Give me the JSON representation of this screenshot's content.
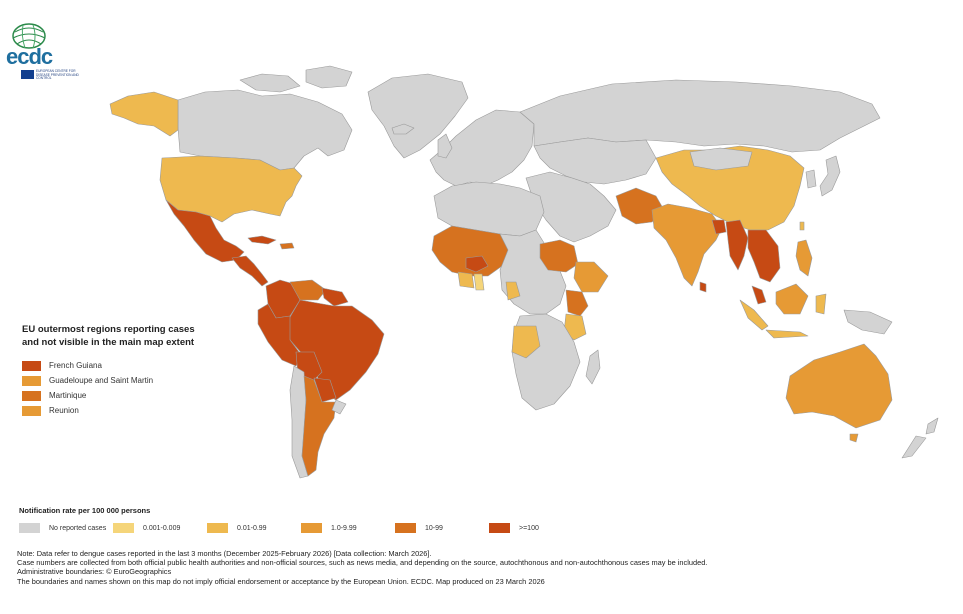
{
  "logo": {
    "wordmark": "ecdc",
    "subtitle": "EUROPEAN CENTRE FOR DISEASE PREVENTION AND CONTROL",
    "globe_icon": "ecdc-globe-icon",
    "flag_icon": "eu-flag-icon"
  },
  "colors": {
    "ocean": "#ffffff",
    "no_data": "#d3d3d3",
    "border": "#9a9a9a",
    "c1": "#f5d57a",
    "c2": "#eeb94f",
    "c3": "#e69a35",
    "c4": "#d6721f",
    "c5": "#c64a14"
  },
  "outermost_box": {
    "title": "EU outermost regions reporting cases and not visible in the main map extent",
    "items": [
      {
        "label": "French Guiana",
        "color": "#c64a14"
      },
      {
        "label": "Guadeloupe and Saint Martin",
        "color": "#e69a35"
      },
      {
        "label": "Martinique",
        "color": "#d6721f"
      },
      {
        "label": "Reunion",
        "color": "#e69a35"
      }
    ]
  },
  "legend": {
    "title": "Notification rate per 100 000 persons",
    "items": [
      {
        "label": "No reported cases",
        "color": "#d3d3d3"
      },
      {
        "label": "0.001-0.009",
        "color": "#f5d57a"
      },
      {
        "label": "0.01-0.99",
        "color": "#eeb94f"
      },
      {
        "label": "1.0-9.99",
        "color": "#e69a35"
      },
      {
        "label": "10-99",
        "color": "#d6721f"
      },
      {
        "label": ">=100",
        "color": "#c64a14"
      }
    ]
  },
  "notes": [
    "Note: Data refer to dengue cases reported in the last 3 months (December 2025-February 2026) [Data collection: March 2026].",
    "Case numbers are collected from both official public health authorities and non-official sources, such as news media, and depending on the source, autochthonous and non-autochthonous cases may be included.",
    "Administrative boundaries: © EuroGeographics",
    "The boundaries and names shown on this map do not imply official endorsement or acceptance by the European Union. ECDC. Map produced on 23 March 2026"
  ]
}
